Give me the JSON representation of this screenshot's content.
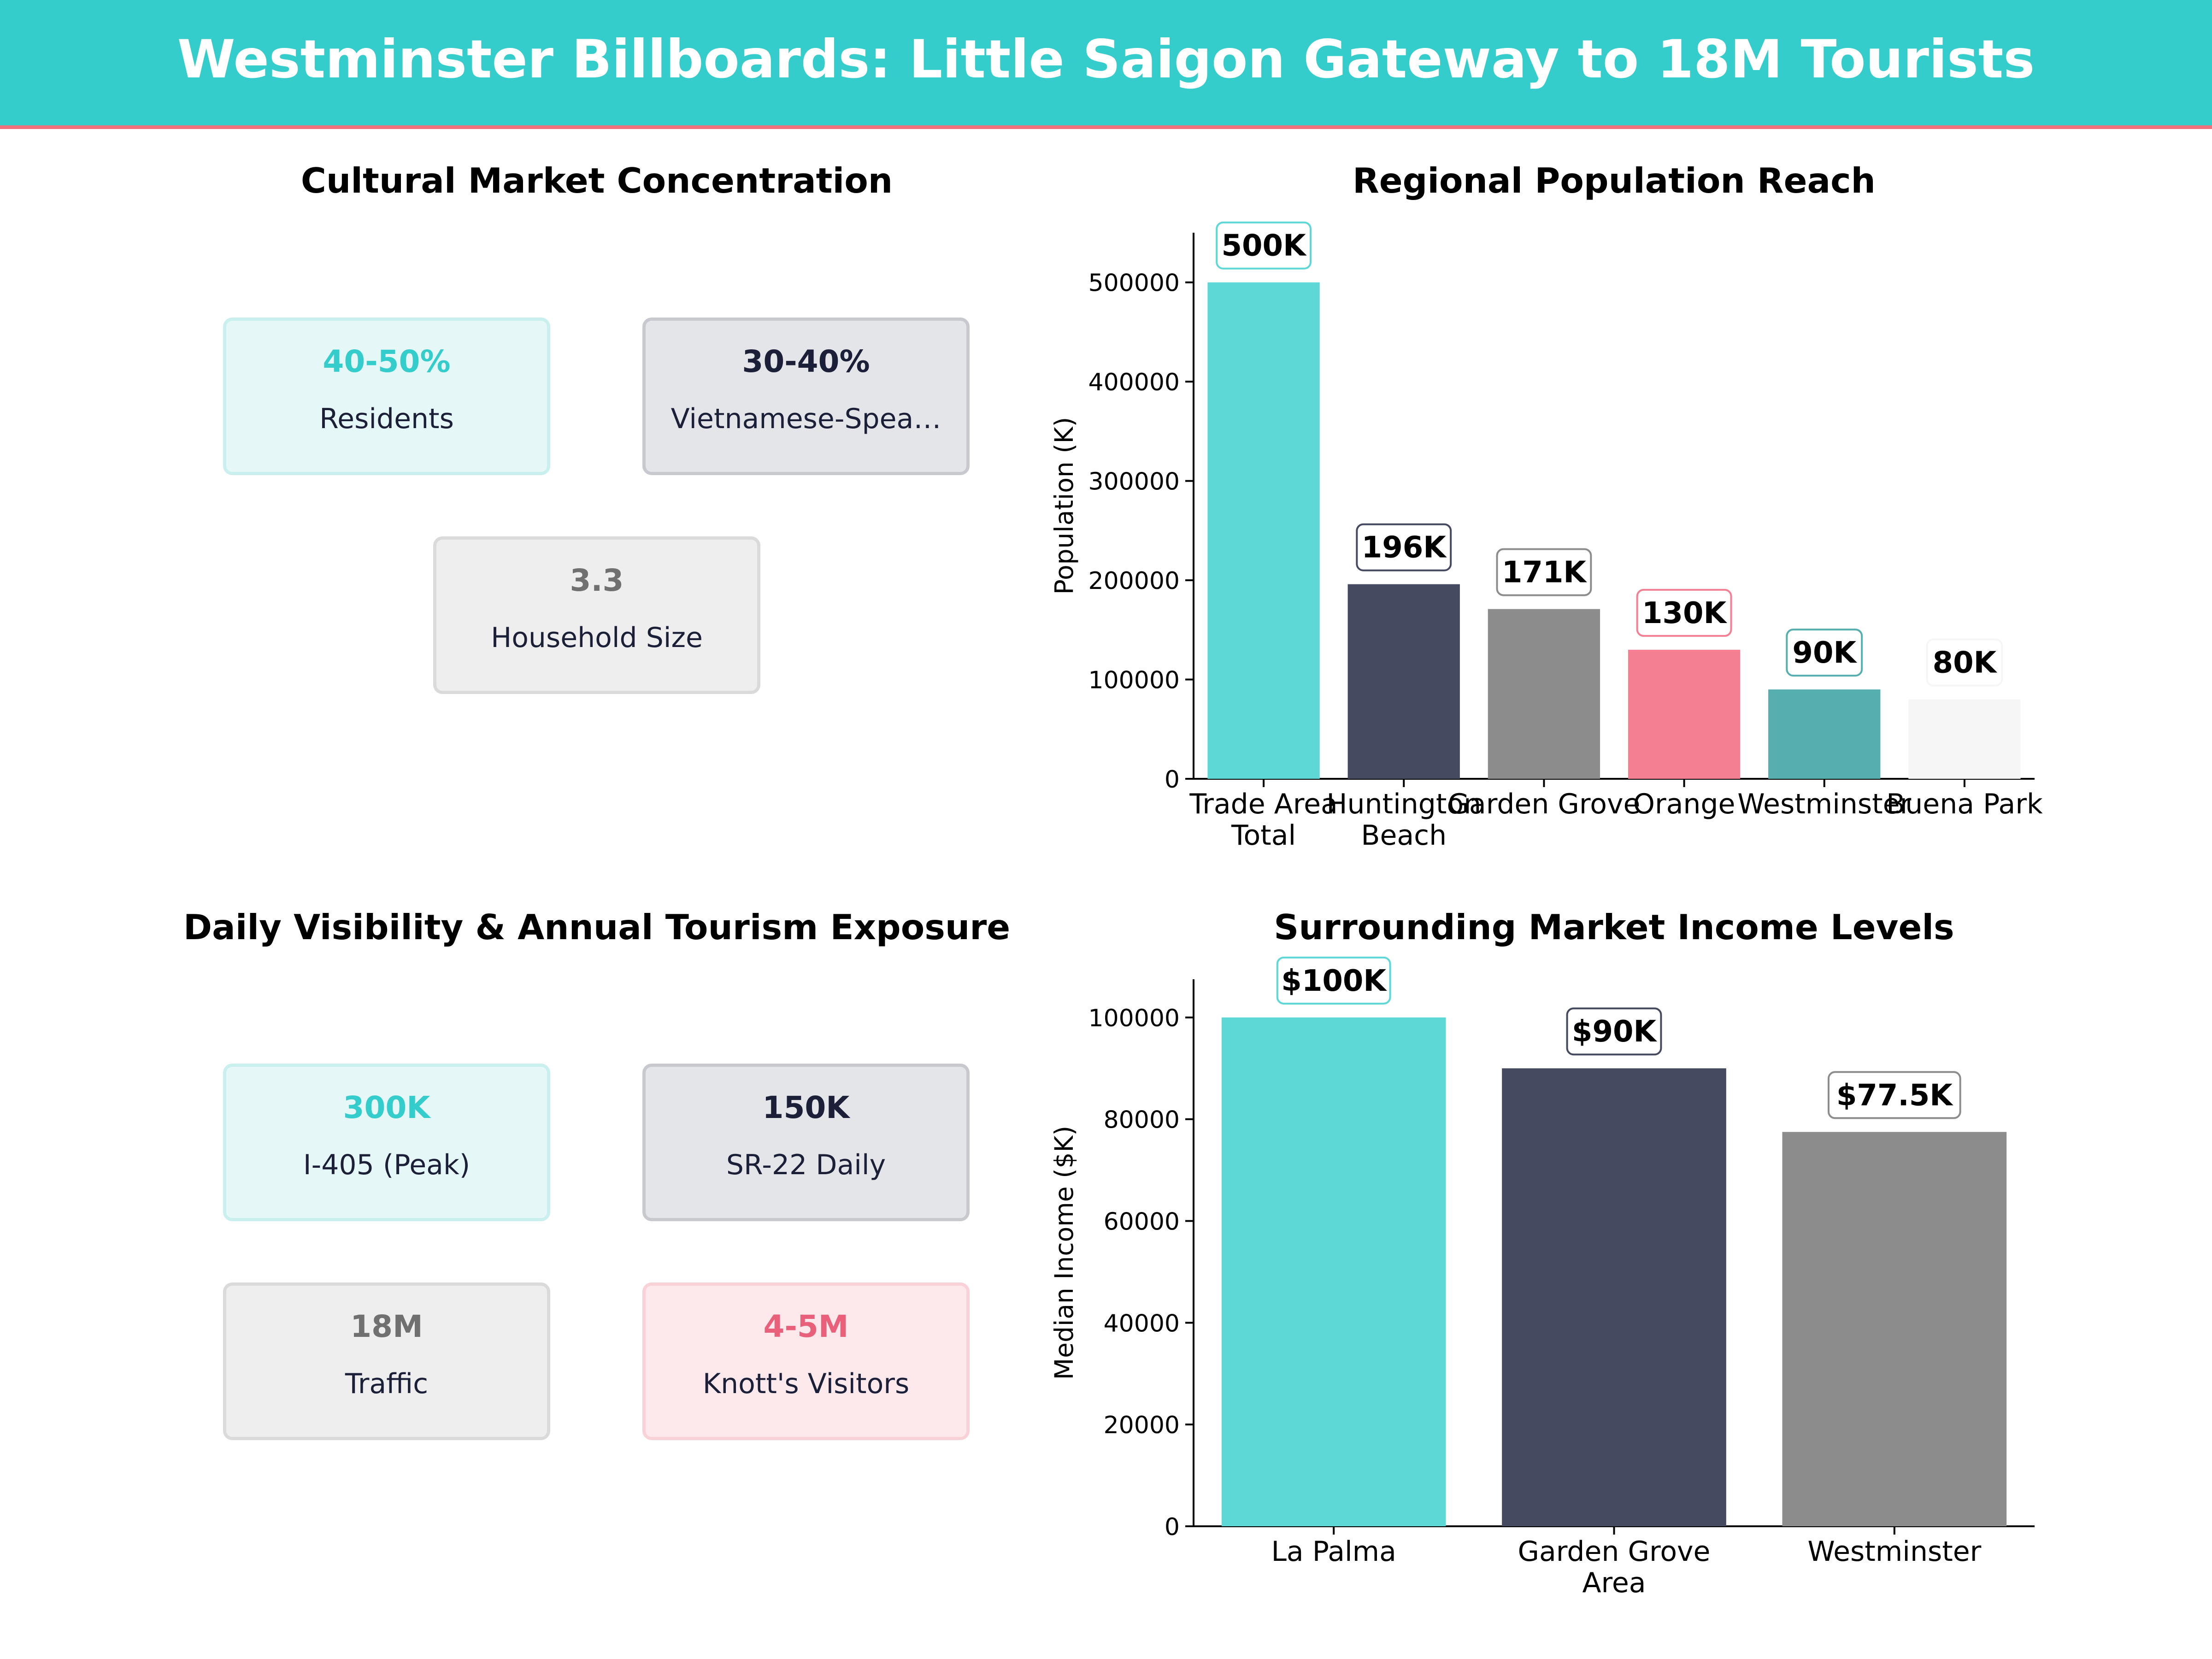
{
  "header": {
    "title": "Westminster Billboards: Little Saigon Gateway to 18M Tourists"
  },
  "panels": {
    "cultural": {
      "title": "Cultural Market Concentration",
      "cards": [
        {
          "value": "40-50%",
          "label": "Residents",
          "accent": "#35CCCC",
          "bg": "#E6F7F7",
          "border": "#C9EFEF"
        },
        {
          "value": "30-40%",
          "label": "Vietnamese-Spea…",
          "accent": "#1B2038",
          "bg": "#E4E5E9",
          "border": "#C8C9CE"
        },
        {
          "value": "3.3",
          "label": "Household Size",
          "accent": "#707070",
          "bg": "#EEEEEE",
          "border": "#DADADA"
        }
      ]
    },
    "visibility": {
      "title": "Daily Visibility & Annual Tourism Exposure",
      "cards": [
        {
          "value": "300K",
          "label": "I-405  (Peak)",
          "accent": "#35CCCC",
          "bg": "#E6F7F7",
          "border": "#C9EFEF"
        },
        {
          "value": "150K",
          "label": "SR-22 Daily",
          "accent": "#1B2038",
          "bg": "#E4E5E9",
          "border": "#C8C9CE"
        },
        {
          "value": "18M",
          "label": "Traffic",
          "accent": "#707070",
          "bg": "#EEEEEE",
          "border": "#DADADA"
        },
        {
          "value": "4-5M",
          "label": "Knott's Visitors",
          "accent": "#E8607A",
          "bg": "#FDE9EC",
          "border": "#F9D2D8"
        }
      ]
    }
  },
  "chart_data": [
    {
      "type": "bar",
      "title": "Regional Population Reach",
      "ylabel": "Population (K)",
      "xlabel": "",
      "categories": [
        "Trade Area\nTotal",
        "Huntington\nBeach",
        "Garden Grove",
        "Orange",
        "Westminster",
        "Buena Park"
      ],
      "values": [
        500000,
        196000,
        171000,
        130000,
        90000,
        80000
      ],
      "value_labels": [
        "500K",
        "196K",
        "171K",
        "130K",
        "90K",
        "80K"
      ],
      "colors": [
        "#5ED8D6",
        "#454A60",
        "#8C8C8C",
        "#F47F92",
        "#56AEAF",
        "#F6F6F6"
      ],
      "label_borders": [
        "#5ED8D6",
        "#454A60",
        "#8C8C8C",
        "#F47F92",
        "#56AEAF",
        "#F6F6F6"
      ],
      "ylim": [
        0,
        550000
      ],
      "yticks": [
        0,
        100000,
        200000,
        300000,
        400000,
        500000
      ],
      "grid": false
    },
    {
      "type": "bar",
      "title": "Surrounding Market Income Levels",
      "ylabel": "Median Income ($K)",
      "xlabel": "",
      "categories": [
        "La Palma",
        "Garden Grove\nArea",
        "Westminster"
      ],
      "values": [
        100000,
        90000,
        77500
      ],
      "value_labels": [
        "$100K",
        "$90K",
        "$77.5K"
      ],
      "colors": [
        "#5ED8D6",
        "#454A60",
        "#8C8C8C"
      ],
      "label_borders": [
        "#5ED8D6",
        "#454A60",
        "#8C8C8C"
      ],
      "ylim": [
        0,
        107500
      ],
      "yticks": [
        0,
        20000,
        40000,
        60000,
        80000,
        100000
      ],
      "grid": false
    }
  ]
}
